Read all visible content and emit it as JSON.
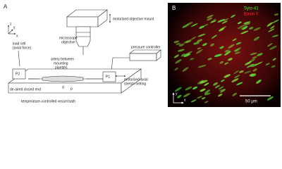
{
  "panel_a": {
    "label": "A",
    "axes": {
      "z": "z",
      "y": "y",
      "x": "x"
    },
    "objective_mount": "motorised objective mount",
    "objective": [
      "microscope",
      "objective"
    ],
    "load_cell": [
      "load cell",
      "(axial force)"
    ],
    "pressure_controller": "pressure controller",
    "artery": [
      "artery between",
      "mounting",
      "pipettes"
    ],
    "p2": "P2",
    "p1": "P1",
    "stretch": [
      "motorised axial",
      "stretch setting"
    ],
    "closed_end": "de-aired closed end",
    "d": "d",
    "p": "p",
    "bath": "temperature-controlled vessel bath"
  },
  "panel_b": {
    "label": "B",
    "stain_green": "Syto-41",
    "stain_red": "Eosin Y",
    "scale_bar": "50 μm",
    "axes": {
      "y": "y",
      "x": "x"
    }
  }
}
